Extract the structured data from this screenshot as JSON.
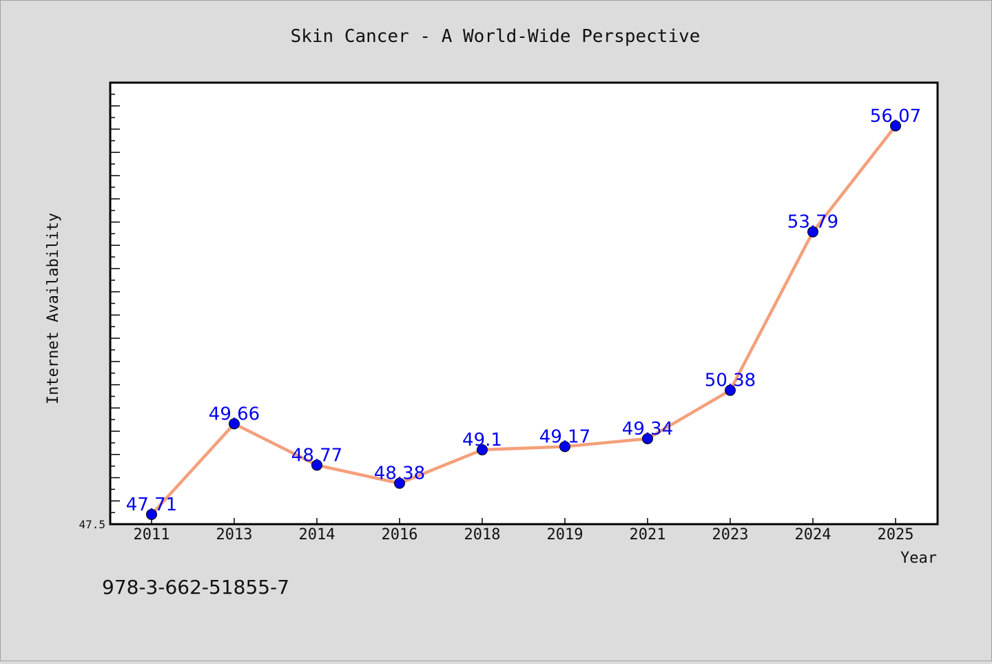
{
  "chart_data": {
    "type": "line",
    "title": "Skin Cancer - A World-Wide Perspective",
    "xlabel": "Year",
    "ylabel": "Internet Availability",
    "categories": [
      "2011",
      "2013",
      "2014",
      "2016",
      "2018",
      "2019",
      "2021",
      "2023",
      "2024",
      "2025"
    ],
    "values": [
      47.71,
      49.66,
      48.77,
      48.38,
      49.1,
      49.17,
      49.34,
      50.38,
      53.79,
      56.07
    ],
    "data_labels": [
      "47.71",
      "49.66",
      "48.77",
      "48.38",
      "49.1",
      "49.17",
      "49.34",
      "50.38",
      "53.79",
      "56.07"
    ],
    "y_tick_labels": [
      "47.5"
    ],
    "ylim": [
      47.5,
      57.0
    ],
    "grid": false,
    "legend": "none",
    "colors": {
      "line": "#f4a07a",
      "marker": "#0000ee",
      "label": "#0000ee",
      "background": "#dcdcdc",
      "plot_background": "#ffffff"
    }
  },
  "footer": {
    "isbn": "978-3-662-51855-7"
  }
}
